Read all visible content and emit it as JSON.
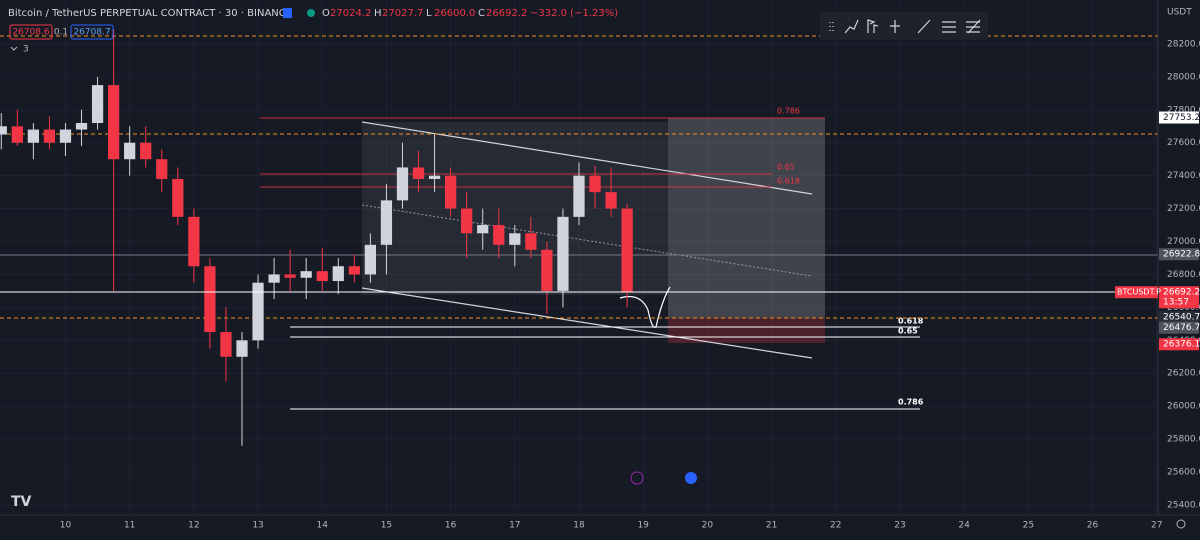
{
  "header": {
    "title": "Bitcoin / TetherUS PERPETUAL CONTRACT · 30 · BINANCE",
    "ohlc": [
      {
        "key": "O",
        "value": "27024.2"
      },
      {
        "key": "H",
        "value": "27027.7"
      },
      {
        "key": "L",
        "value": "26600.0"
      },
      {
        "key": "C",
        "value": "26692.2"
      }
    ],
    "change": "−332.0 (−1.23%)",
    "sell": "26708.6",
    "spread": "0.1",
    "buy": "26708.7",
    "indicators": "3",
    "currency": "USDT"
  },
  "drawings": {
    "fib_red": [
      "0.786",
      "0.65",
      "0.618"
    ],
    "fib_white": [
      "0.618",
      "0.65",
      "0.786"
    ]
  },
  "chart_data": {
    "type": "candlestick",
    "x": [
      9,
      9.25,
      9.5,
      9.75,
      10,
      10.25,
      10.5,
      10.75,
      11,
      11.25,
      11.5,
      11.75,
      12,
      12.25,
      12.5,
      12.75,
      13,
      13.25,
      13.5,
      13.75,
      14,
      14.25,
      14.5,
      14.75,
      15,
      15.25,
      15.5,
      15.75,
      16,
      16.25,
      16.5,
      16.75,
      17,
      17.25,
      17.5,
      17.75,
      18,
      18.25,
      18.5,
      18.75
    ],
    "open": [
      27650,
      27700,
      27600,
      27680,
      27600,
      27680,
      27720,
      27950,
      27500,
      27600,
      27500,
      27380,
      27150,
      26850,
      26450,
      26300,
      26400,
      26750,
      26800,
      26780,
      26820,
      26760,
      26850,
      26800,
      26980,
      27250,
      27450,
      27380,
      27400,
      27200,
      27050,
      27100,
      26980,
      27050,
      26950,
      26700,
      27150,
      27400,
      27300,
      27200
    ],
    "high": [
      27780,
      27800,
      27720,
      27760,
      27720,
      27800,
      28000,
      28290,
      27700,
      27700,
      27560,
      27450,
      27200,
      26900,
      26600,
      26450,
      26800,
      26900,
      26950,
      26900,
      26960,
      26900,
      26920,
      27050,
      27350,
      27600,
      27550,
      27650,
      27450,
      27300,
      27200,
      27200,
      27100,
      27150,
      27000,
      27200,
      27480,
      27460,
      27450,
      27230
    ],
    "low": [
      27560,
      27580,
      27500,
      27560,
      27520,
      27580,
      27680,
      26700,
      27400,
      27450,
      27300,
      27100,
      26750,
      26350,
      26150,
      25760,
      26350,
      26650,
      26700,
      26650,
      26700,
      26680,
      26750,
      26750,
      26800,
      27200,
      27300,
      27300,
      27150,
      26900,
      26950,
      26900,
      26850,
      26900,
      26560,
      26600,
      27100,
      27200,
      27150,
      26600
    ],
    "close": [
      27700,
      27600,
      27680,
      27600,
      27680,
      27720,
      27950,
      27500,
      27600,
      27500,
      27380,
      27150,
      26850,
      26450,
      26300,
      26400,
      26750,
      26800,
      26780,
      26820,
      26760,
      26850,
      26800,
      26980,
      27250,
      27450,
      27380,
      27400,
      27200,
      27050,
      27100,
      26980,
      27050,
      26950,
      26700,
      27150,
      27400,
      27300,
      27200,
      26692
    ],
    "up_color": "#d1d4dc",
    "down_color": "#f23645",
    "xlim": [
      8.98,
      27.02
    ],
    "xticks": [
      10,
      11,
      12,
      13,
      14,
      15,
      16,
      17,
      18,
      19,
      20,
      21,
      22,
      23,
      24,
      25,
      26,
      27
    ],
    "ylim": [
      25339,
      28467
    ],
    "yticks": [
      {
        "value": 25400,
        "label": "25400.0"
      },
      {
        "value": 25600,
        "label": "25600.0"
      },
      {
        "value": 25800,
        "label": "25800.0"
      },
      {
        "value": 26000,
        "label": "26000.0"
      },
      {
        "value": 26200,
        "label": "26200.0"
      },
      {
        "value": 26400,
        "label": "26400.0"
      },
      {
        "value": 26600,
        "label": "26600.0"
      },
      {
        "value": 26800,
        "label": "26800.0"
      },
      {
        "value": 27000,
        "label": "27000.0"
      },
      {
        "value": 27200,
        "label": "27200.0"
      },
      {
        "value": 27400,
        "label": "27400.0"
      },
      {
        "value": 27600,
        "label": "27600.0"
      },
      {
        "value": 27800,
        "label": "27800.0"
      },
      {
        "value": 28000,
        "label": "28000.0"
      },
      {
        "value": 28200,
        "label": "28200.0"
      }
    ],
    "price_tags": [
      {
        "value": 27753.2,
        "label": "27753.2",
        "color": "#ffffff"
      },
      {
        "value": 26922.8,
        "label": "26922.8",
        "color": "#50535e"
      },
      {
        "value": 26540.7,
        "label": "26540.7",
        "color": "#2a2e39"
      },
      {
        "value": 26476.7,
        "label": "26476.7",
        "color": "#50535e"
      },
      {
        "value": 26376.1,
        "label": "26376.1",
        "color": "#f23645"
      }
    ],
    "last_price": {
      "symbol": "BTCUSDT.P",
      "value": 26692.2,
      "label": "26692.2",
      "countdown": "13:57",
      "color": "#f23645"
    }
  }
}
